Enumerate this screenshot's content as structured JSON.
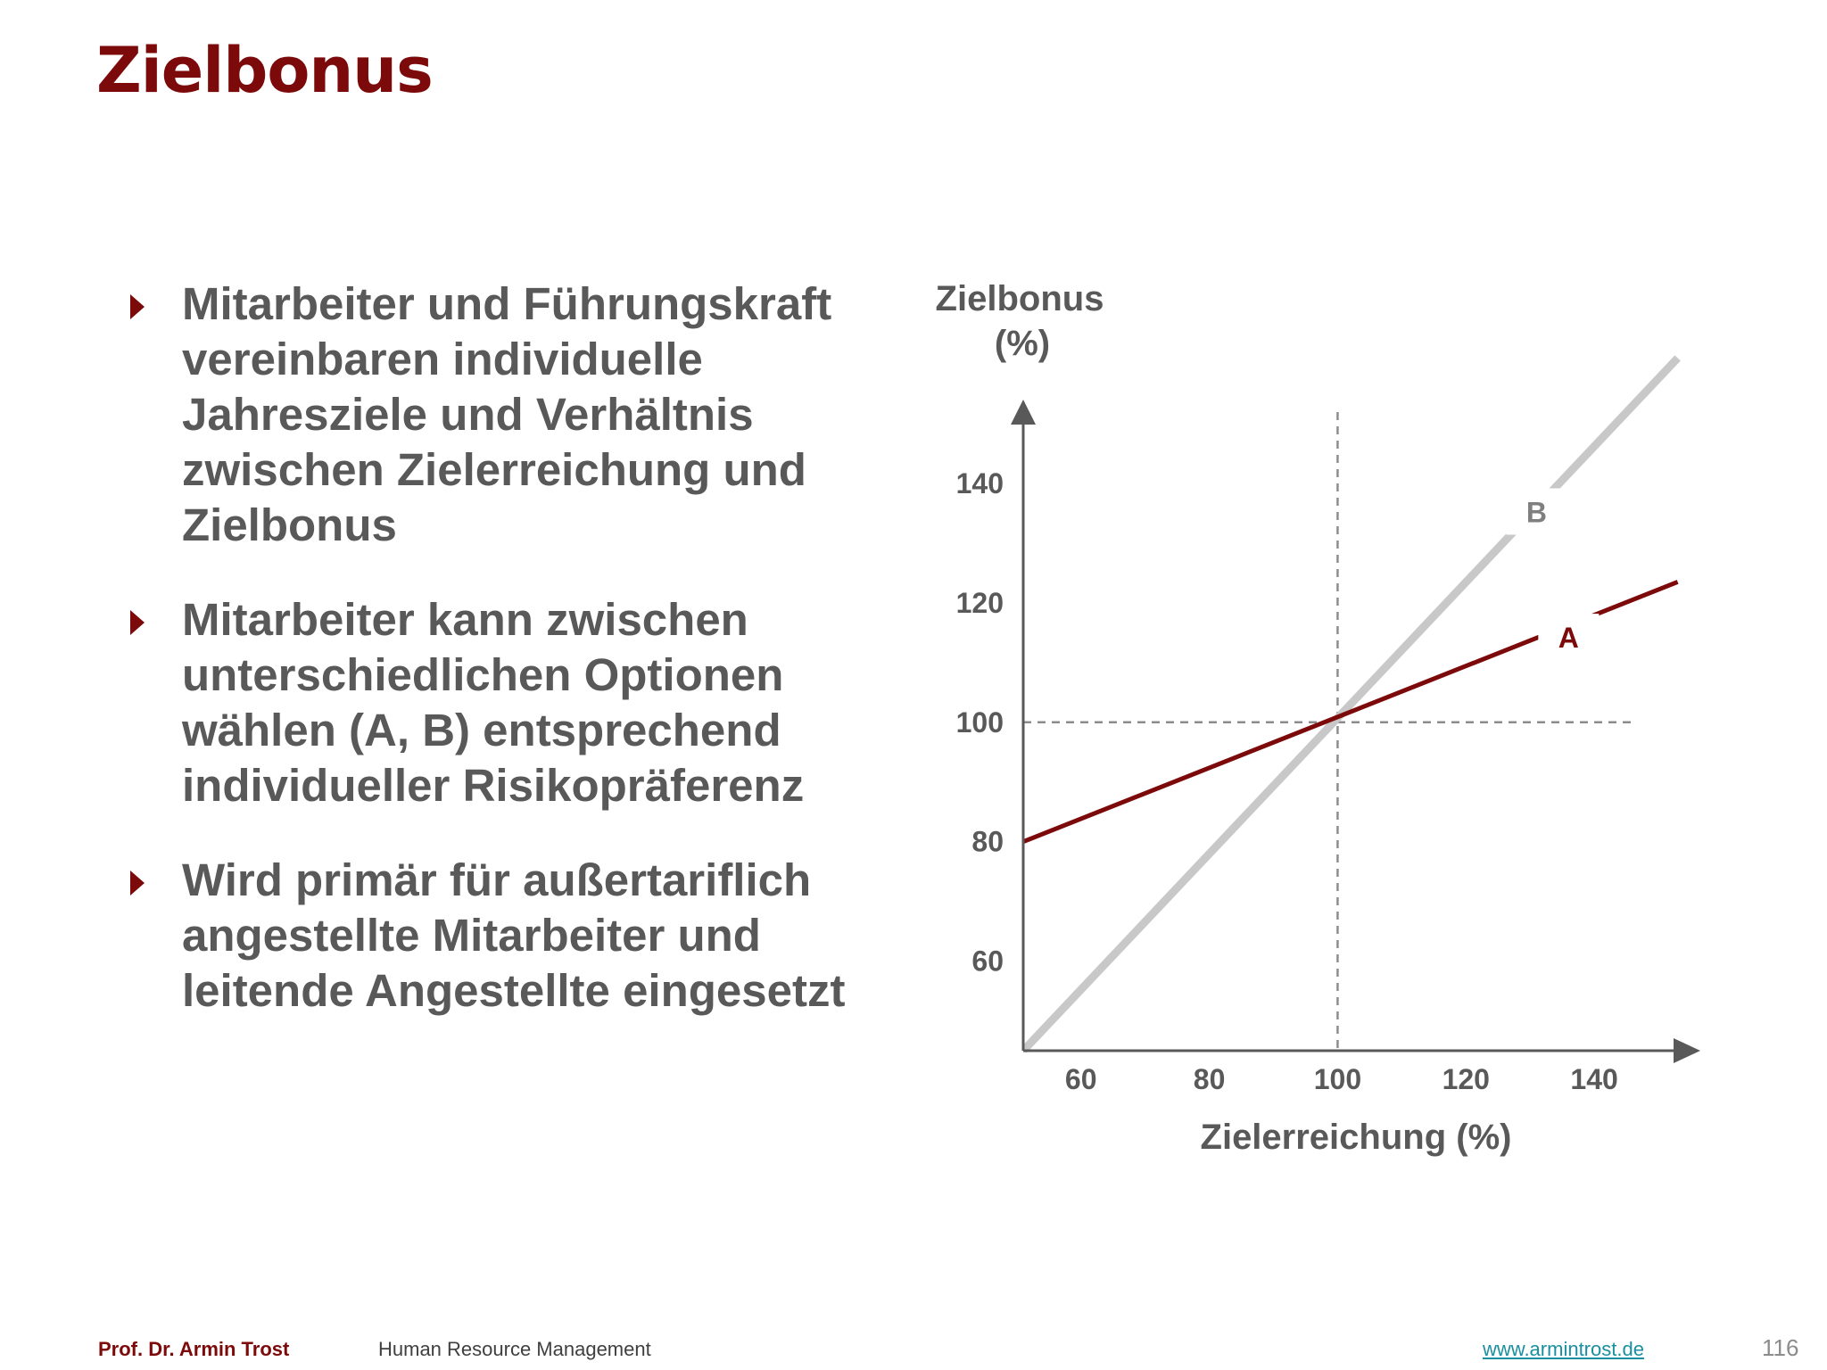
{
  "slide": {
    "title": "Zielbonus"
  },
  "bullets": [
    {
      "text": "Mitarbeiter und Führungskraft vereinbaren individuelle Jahresziele und Verhältnis zwischen Zielerreichung und Zielbonus"
    },
    {
      "text": "Mitarbeiter kann zwischen unterschiedlichen Optionen wählen (A, B) entsprechend individueller Risikopräferenz"
    },
    {
      "text": "Wird primär für außertariflich angestellte Mitarbeiter und leitende Angestellte eingesetzt"
    }
  ],
  "chart_data": {
    "type": "line",
    "title": "",
    "xlabel": "Zielerreichung (%)",
    "ylabel_line1": "Zielbonus",
    "ylabel_line2": "(%)",
    "xlim": [
      51,
      155
    ],
    "ylim": [
      45,
      153
    ],
    "xticks": [
      60,
      80,
      100,
      120,
      140
    ],
    "yticks": [
      60,
      80,
      100,
      120,
      140
    ],
    "xtick_labels": [
      "60",
      "80",
      "100",
      "120",
      "140"
    ],
    "ytick_labels": [
      "60",
      "80",
      "100",
      "120",
      "140"
    ],
    "reference_lines": {
      "x": 100,
      "y": 100
    },
    "series": [
      {
        "name": "A",
        "color": "#7d0a0a",
        "x": [
          51,
          153
        ],
        "y": [
          80,
          123.5
        ],
        "label_at": [
          136,
          114
        ]
      },
      {
        "name": "B",
        "color": "#c8c8c8",
        "x": [
          51,
          153
        ],
        "y": [
          45,
          161
        ],
        "label_at": [
          131,
          135
        ]
      }
    ],
    "grid": false,
    "legend": "none"
  },
  "footer": {
    "author": "Prof. Dr. Armin Trost",
    "course": "Human Resource Management",
    "url": "www.armintrost.de",
    "page": "116"
  }
}
